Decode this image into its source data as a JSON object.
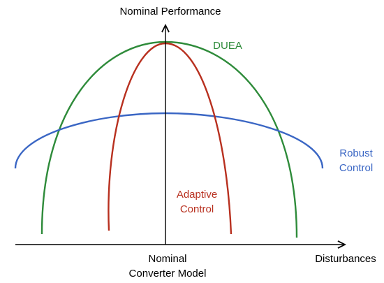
{
  "labels": {
    "y_axis": "Nominal Performance",
    "x_axis": "Disturbances",
    "origin_line1": "Nominal",
    "origin_line2": "Converter Model"
  },
  "curves": [
    {
      "id": "duea",
      "label_lines": [
        "DUEA"
      ],
      "color": "#2e8b3a"
    },
    {
      "id": "robust",
      "label_lines": [
        "Robust",
        "Control"
      ],
      "color": "#3a66c4"
    },
    {
      "id": "adaptive",
      "label_lines": [
        "Adaptive",
        "Control"
      ],
      "color": "#b8301f"
    }
  ],
  "colors": {
    "axis": "#000000",
    "label_text": "#000000"
  }
}
